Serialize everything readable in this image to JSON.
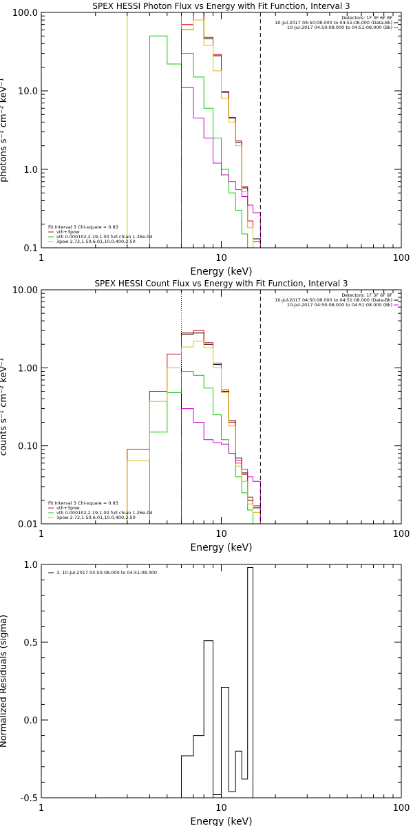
{
  "chart_data": [
    {
      "type": "line",
      "title": "SPEX HESSI Photon Flux vs Energy with Fit Function, Interval 3",
      "xlabel": "Energy (keV)",
      "ylabel": "photons s⁻¹ cm⁻² keV⁻¹",
      "xscale": "log",
      "yscale": "log",
      "xlim": [
        1,
        100
      ],
      "ylim": [
        0.1,
        100
      ],
      "x_ticks": [
        "1",
        "10",
        "100"
      ],
      "y_ticks": [
        "0.1",
        "1.0",
        "10.0",
        "100.0"
      ],
      "edges": [
        3,
        4,
        5,
        6,
        7,
        8,
        9,
        10,
        11,
        12,
        13,
        14,
        15,
        16.5
      ],
      "vlines": [
        {
          "x": 6.0,
          "style": "dotted"
        },
        {
          "x": 16.5,
          "style": "dashed"
        }
      ],
      "legend_right": [
        {
          "text": "Detectors: 1F 3F 6F 8F",
          "color": "#000000"
        },
        {
          "text": "10-Jul-2017 04:50:08.000 to 04:51:08.000 (Data-Bk)",
          "color": "#000000"
        },
        {
          "text": "10-Jul-2017 04:50:08.000 to 04:51:08.000 (Bk)",
          "color": "#cc00cc"
        }
      ],
      "legend_left": [
        {
          "text": "Fit Interval 3   Chi-square = 0.83",
          "color": "#000000"
        },
        {
          "text": "vth+3pow",
          "color": "#dd0000"
        },
        {
          "text": "vth 0.000102,2.19,1.00  full chian 1.26e-04",
          "color": "#00cc00"
        },
        {
          "text": "3pow 2.72,1.50,6.01,10.0,400,2.50",
          "color": "#ddbb00"
        }
      ],
      "series": [
        {
          "name": "Data-Bk",
          "color": "#000000",
          "values": [
            null,
            null,
            null,
            60,
            100,
            46,
            28,
            9.6,
            4.5,
            2.2,
            0.58,
            0.22,
            0.13
          ]
        },
        {
          "name": "vth+3pow",
          "color": "#dd0000",
          "values": [
            null,
            null,
            null,
            70,
            100,
            48,
            29,
            9.8,
            4.6,
            2.3,
            0.6,
            0.22,
            0.12
          ]
        },
        {
          "name": "vth",
          "color": "#00cc00",
          "values": [
            null,
            50,
            22,
            30,
            15,
            6,
            2.5,
            1.0,
            0.5,
            0.3,
            0.15,
            0.1,
            0.08
          ]
        },
        {
          "name": "3pow",
          "color": "#ddbb00",
          "values": [
            100,
            100,
            100,
            60,
            80,
            38,
            18,
            8,
            4,
            2,
            0.52,
            0.18,
            0.1
          ]
        },
        {
          "name": "Bk",
          "color": "#cc00cc",
          "values": [
            null,
            null,
            null,
            11,
            4.5,
            2.5,
            1.2,
            0.85,
            0.7,
            0.55,
            0.45,
            0.35,
            0.28
          ]
        }
      ]
    },
    {
      "type": "line",
      "title": "SPEX HESSI Count Flux vs Energy with Fit Function, Interval 3",
      "xlabel": "Energy (keV)",
      "ylabel": "counts s⁻¹ cm⁻² keV⁻¹",
      "xscale": "log",
      "yscale": "log",
      "xlim": [
        1,
        100
      ],
      "ylim": [
        0.01,
        10
      ],
      "x_ticks": [
        "1",
        "10",
        "100"
      ],
      "y_ticks": [
        "0.01",
        "0.10",
        "1.00",
        "10.00"
      ],
      "edges": [
        3,
        4,
        5,
        6,
        7,
        8,
        9,
        10,
        11,
        12,
        13,
        14,
        15,
        16.5
      ],
      "vlines": [
        {
          "x": 6.0,
          "style": "dotted"
        },
        {
          "x": 16.5,
          "style": "dashed"
        }
      ],
      "legend_right": [
        {
          "text": "Detectors: 1F 3F 6F 8F",
          "color": "#000000"
        },
        {
          "text": "10-Jul-2017 04:50:08.000 to 04:51:08.000 (Data-Bk)",
          "color": "#000000"
        },
        {
          "text": "10-Jul-2017 04:50:08.000 to 04:51:08.000 (Bk)",
          "color": "#cc00cc"
        }
      ],
      "legend_left": [
        {
          "text": "Fit Interval 3   Chi-square = 0.83",
          "color": "#000000"
        },
        {
          "text": "vth+3pow",
          "color": "#dd0000"
        },
        {
          "text": "vth 0.000102,2.19,1.00  full chian 1.26e-04",
          "color": "#00cc00"
        },
        {
          "text": "3pow 2.72,1.50,6.01,10.0,400,2.50",
          "color": "#ddbb00"
        }
      ],
      "series": [
        {
          "name": "Data-Bk",
          "color": "#000000",
          "values": [
            null,
            null,
            null,
            2.7,
            2.8,
            2.0,
            1.1,
            0.5,
            0.21,
            0.07,
            0.045,
            0.02,
            0.016
          ]
        },
        {
          "name": "vth+3pow",
          "color": "#dd0000",
          "values": [
            0.09,
            0.5,
            1.5,
            2.8,
            3.0,
            2.1,
            1.15,
            0.52,
            0.2,
            0.065,
            0.043,
            0.022,
            0.017
          ]
        },
        {
          "name": "vth",
          "color": "#00cc00",
          "values": [
            null,
            0.15,
            0.48,
            0.9,
            0.8,
            0.55,
            0.25,
            0.12,
            0.08,
            0.04,
            0.025,
            0.015,
            0.01
          ]
        },
        {
          "name": "3pow",
          "color": "#ddbb00",
          "values": [
            0.065,
            0.37,
            1.0,
            1.85,
            2.2,
            1.8,
            1.0,
            0.48,
            0.18,
            0.055,
            0.035,
            0.018,
            0.014
          ]
        },
        {
          "name": "Bk",
          "color": "#cc00cc",
          "values": [
            null,
            null,
            null,
            0.3,
            0.2,
            0.12,
            0.11,
            0.105,
            0.08,
            0.06,
            0.05,
            0.04,
            0.035
          ]
        }
      ]
    },
    {
      "type": "line",
      "title": "",
      "xlabel": "Energy (keV)",
      "ylabel": "Normalized Residuals (sigma)",
      "xscale": "log",
      "yscale": "linear",
      "xlim": [
        1,
        100
      ],
      "ylim": [
        -0.5,
        1.0
      ],
      "x_ticks": [
        "1",
        "10",
        "100"
      ],
      "y_ticks": [
        "-0.5",
        "0.0",
        "0.5",
        "1.0"
      ],
      "edges": [
        6,
        7,
        8,
        9,
        10,
        11,
        12,
        13,
        14,
        15,
        16.5
      ],
      "legend_left": [
        {
          "text": "3, 10-Jul-2017 04:50:08.000 to 04:51:08.000",
          "color": "#000000"
        }
      ],
      "series": [
        {
          "name": "3, 10-Jul-2017 04:50:08.000 to 04:51:08.000",
          "color": "#000000",
          "values": [
            -0.23,
            -0.1,
            0.51,
            -0.48,
            0.21,
            -0.46,
            -0.2,
            -0.38,
            0.98,
            null
          ]
        }
      ]
    }
  ]
}
